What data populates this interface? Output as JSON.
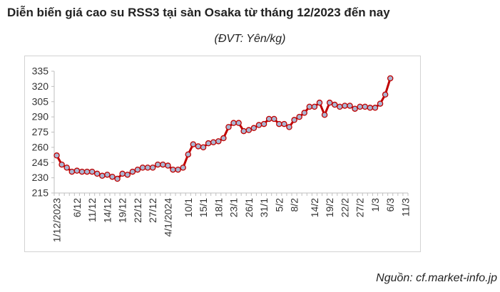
{
  "title": "Diễn biến giá cao su RSS3 tại sàn Osaka từ tháng 12/2023 đến nay",
  "subtitle": "(ĐVT: Yên/kg)",
  "source": "Nguồn: cf.market-info.jp",
  "colors": {
    "line": "#c00000",
    "marker_fill": "#a9b6d2",
    "marker_stroke": "#c00000"
  },
  "chart_data": {
    "type": "line",
    "title": "",
    "xlabel": "",
    "ylabel": "",
    "ylim": [
      215,
      335
    ],
    "yticks": [
      215,
      230,
      245,
      260,
      275,
      290,
      305,
      320,
      335
    ],
    "grid": false,
    "legend": "none",
    "xtick_labels": [
      "1/12/2023",
      "6/12",
      "11/12",
      "14/12",
      "19/12",
      "22/12",
      "27/12",
      "4/1/2024",
      "10/1",
      "15/1",
      "18/1",
      "23/1",
      "26/1",
      "31/1",
      "5/2",
      "8/2",
      "14/2",
      "19/2",
      "22/2",
      "27/2",
      "1/3",
      "6/3",
      "11/3"
    ],
    "xtick_positions": [
      0,
      4,
      7,
      10,
      13,
      16,
      19,
      22,
      26,
      29,
      32,
      35,
      38,
      41,
      44,
      47,
      51,
      54,
      57,
      60,
      63,
      66,
      69
    ],
    "series": [
      {
        "values": [
          252,
          243,
          240,
          236,
          237,
          236,
          236,
          236,
          234,
          232,
          233,
          231,
          229,
          234,
          233,
          236,
          238,
          240,
          240,
          240,
          243,
          243,
          242,
          238,
          238,
          240,
          253,
          263,
          261,
          260,
          264,
          265,
          266,
          269,
          280,
          284,
          284,
          276,
          277,
          279,
          282,
          283,
          288,
          288,
          283,
          283,
          280,
          287,
          290,
          294,
          300,
          300,
          304,
          292,
          304,
          302,
          300,
          301,
          301,
          298,
          300,
          300,
          299,
          299,
          303,
          312,
          328
        ]
      }
    ]
  }
}
